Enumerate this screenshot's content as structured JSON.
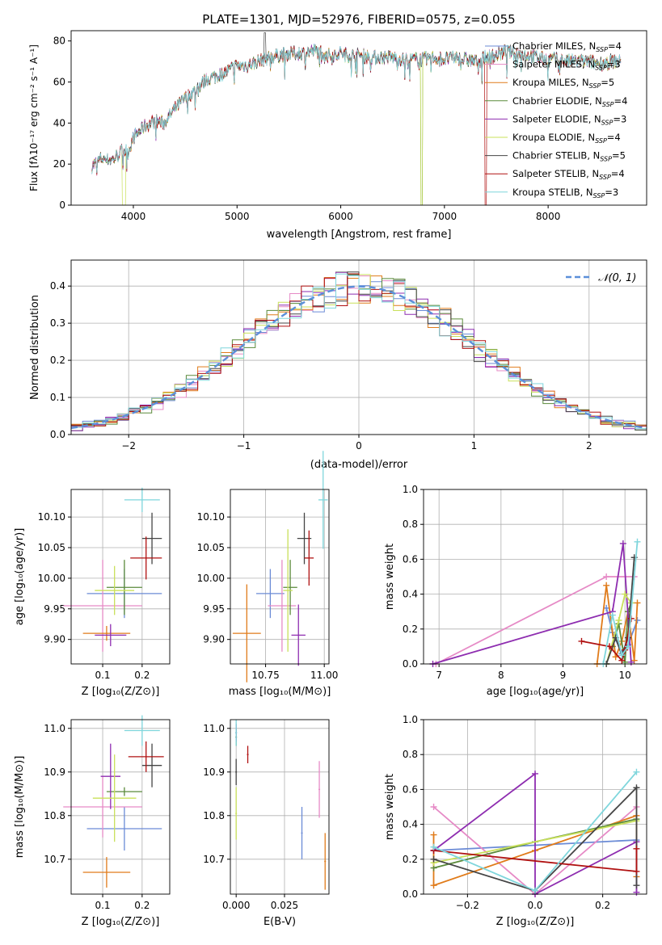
{
  "title": "PLATE=1301, MJD=52976, FIBERID=0575, z=0.055",
  "colors": {
    "Chabrier MILES": "#6b8bd6",
    "Salpeter MILES": "#e68ac6",
    "Kroupa MILES": "#e07b1a",
    "Chabrier ELODIE": "#5a8a3a",
    "Salpeter ELODIE": "#8e2db0",
    "Kroupa ELODIE": "#c9e05a",
    "Chabrier STELIB": "#454545",
    "Salpeter STELIB": "#b01010",
    "Kroupa STELIB": "#7fd6dc"
  },
  "chart_data": [
    {
      "id": "spectrum",
      "type": "line",
      "title": "PLATE=1301, MJD=52976, FIBERID=0575, z=0.055",
      "xlabel": "wavelength [Angstrom, rest frame]",
      "ylabel": "Flux [fλ10⁻¹⁷ erg cm⁻² s⁻¹ A⁻¹]",
      "xlim": [
        3400,
        8950
      ],
      "ylim": [
        0,
        85
      ],
      "xticks": [
        "4000",
        "5000",
        "6000",
        "7000",
        "8000"
      ],
      "yticks": [
        "0",
        "20",
        "40",
        "60",
        "80"
      ],
      "grid": false,
      "legend": "upper right",
      "legend_entries": [
        {
          "model": "Chabrier MILES",
          "nssp": "4"
        },
        {
          "model": "Salpeter MILES",
          "nssp": "3"
        },
        {
          "model": "Kroupa MILES",
          "nssp": "5"
        },
        {
          "model": "Chabrier ELODIE",
          "nssp": "4"
        },
        {
          "model": "Salpeter ELODIE",
          "nssp": "3"
        },
        {
          "model": "Kroupa ELODIE",
          "nssp": "4"
        },
        {
          "model": "Chabrier STELIB",
          "nssp": "5"
        },
        {
          "model": "Salpeter STELIB",
          "nssp": "4"
        },
        {
          "model": "Kroupa STELIB",
          "nssp": "3"
        }
      ],
      "continuum": [
        [
          3600,
          19
        ],
        [
          3700,
          23
        ],
        [
          3800,
          22
        ],
        [
          3900,
          27
        ],
        [
          3950,
          26
        ],
        [
          4000,
          33
        ],
        [
          4100,
          38
        ],
        [
          4200,
          41
        ],
        [
          4300,
          40
        ],
        [
          4400,
          47
        ],
        [
          4500,
          52
        ],
        [
          4600,
          56
        ],
        [
          4700,
          61
        ],
        [
          4800,
          63
        ],
        [
          4900,
          65
        ],
        [
          5000,
          68
        ],
        [
          5100,
          68
        ],
        [
          5200,
          70
        ],
        [
          5300,
          72
        ],
        [
          5400,
          73
        ],
        [
          5500,
          74
        ],
        [
          5600,
          74
        ],
        [
          5700,
          75
        ],
        [
          5800,
          75
        ],
        [
          5900,
          73
        ],
        [
          6000,
          74
        ],
        [
          6100,
          73
        ],
        [
          6200,
          73
        ],
        [
          6300,
          72
        ],
        [
          6400,
          72
        ],
        [
          6500,
          72
        ],
        [
          6600,
          71
        ],
        [
          6700,
          71
        ],
        [
          6800,
          71
        ],
        [
          6900,
          72
        ],
        [
          7000,
          71
        ],
        [
          7100,
          72
        ],
        [
          7200,
          71
        ],
        [
          7300,
          70
        ],
        [
          7400,
          72
        ],
        [
          7500,
          73
        ],
        [
          7600,
          75
        ],
        [
          7700,
          74
        ],
        [
          7800,
          73
        ],
        [
          7900,
          72
        ],
        [
          8000,
          71
        ],
        [
          8100,
          71
        ],
        [
          8200,
          70
        ],
        [
          8300,
          70
        ],
        [
          8400,
          70
        ],
        [
          8500,
          69
        ],
        [
          8600,
          70
        ],
        [
          8700,
          70
        ]
      ]
    },
    {
      "id": "residuals",
      "type": "histogram",
      "xlabel": "(data-model)/error",
      "ylabel": "Normed distribution",
      "xlim": [
        -2.5,
        2.5
      ],
      "ylim": [
        0,
        0.47
      ],
      "xticks": [
        "−2",
        "−1",
        "0",
        "1",
        "2"
      ],
      "yticks": [
        "0.0",
        "0.1",
        "0.2",
        "0.3",
        "0.4"
      ],
      "grid": true,
      "legend": "upper right",
      "legend_label": "𝒩(0, 1)",
      "bin_width": 0.1
    },
    {
      "id": "age-vs-Z",
      "type": "errorbar",
      "xlabel": "Z [log₁₀(Z/Z⊙)]",
      "ylabel": "age  [log₁₀(age/yr)]",
      "xlim": [
        0.02,
        0.27
      ],
      "ylim": [
        9.86,
        10.145
      ],
      "xticks": [
        "0.1",
        "0.2"
      ],
      "yticks": [
        "9.90",
        "9.95",
        "10.00",
        "10.05",
        "10.10"
      ],
      "grid": true,
      "points": [
        {
          "model": "Chabrier MILES",
          "x": 0.155,
          "xerr": 0.095,
          "y": 9.975,
          "yerr": 0.04
        },
        {
          "model": "Salpeter MILES",
          "x": 0.1,
          "xerr": 0.1,
          "y": 9.955,
          "yerr": 0.075
        },
        {
          "model": "Kroupa MILES",
          "x": 0.11,
          "xerr": 0.06,
          "y": 9.91,
          "yerr": 0.012
        },
        {
          "model": "Chabrier ELODIE",
          "x": 0.155,
          "xerr": 0.045,
          "y": 9.985,
          "yerr": 0.045
        },
        {
          "model": "Salpeter ELODIE",
          "x": 0.12,
          "xerr": 0.04,
          "y": 9.907,
          "yerr": 0.018
        },
        {
          "model": "Kroupa ELODIE",
          "x": 0.13,
          "xerr": 0.05,
          "y": 9.98,
          "yerr": 0.04
        },
        {
          "model": "Chabrier STELIB",
          "x": 0.225,
          "xerr": 0.025,
          "y": 10.065,
          "yerr": 0.042
        },
        {
          "model": "Salpeter STELIB",
          "x": 0.21,
          "xerr": 0.04,
          "y": 10.033,
          "yerr": 0.035
        },
        {
          "model": "Kroupa STELIB",
          "x": 0.2,
          "xerr": 0.045,
          "y": 10.128,
          "yerr": 0.02
        }
      ]
    },
    {
      "id": "age-vs-mass",
      "type": "errorbar",
      "xlabel": "mass [log₁₀(M/M⊙)]",
      "ylabel": "",
      "xlim": [
        10.6,
        11.02
      ],
      "ylim": [
        9.86,
        10.145
      ],
      "xticks": [
        "10.75",
        "11.00"
      ],
      "yticks": [
        "9.90",
        "9.95",
        "10.00",
        "10.05",
        "10.10"
      ],
      "grid": true,
      "points": [
        {
          "model": "Chabrier MILES",
          "x": 10.77,
          "xerr": 0.06,
          "y": 9.975,
          "yerr": 0.04
        },
        {
          "model": "Salpeter MILES",
          "x": 10.82,
          "xerr": 0.06,
          "y": 9.955,
          "yerr": 0.075
        },
        {
          "model": "Kroupa MILES",
          "x": 10.67,
          "xerr": 0.06,
          "y": 9.91,
          "yerr": 0.08
        },
        {
          "model": "Chabrier ELODIE",
          "x": 10.855,
          "xerr": 0.03,
          "y": 9.985,
          "yerr": 0.045
        },
        {
          "model": "Salpeter ELODIE",
          "x": 10.89,
          "xerr": 0.03,
          "y": 9.907,
          "yerr": 0.05
        },
        {
          "model": "Kroupa ELODIE",
          "x": 10.845,
          "xerr": 0.02,
          "y": 9.98,
          "yerr": 0.1
        },
        {
          "model": "Chabrier STELIB",
          "x": 10.915,
          "xerr": 0.03,
          "y": 10.065,
          "yerr": 0.042
        },
        {
          "model": "Salpeter STELIB",
          "x": 10.935,
          "xerr": 0.02,
          "y": 10.033,
          "yerr": 0.045
        },
        {
          "model": "Kroupa STELIB",
          "x": 10.995,
          "xerr": 0.02,
          "y": 10.128,
          "yerr": 0.08
        }
      ]
    },
    {
      "id": "weight-vs-age",
      "type": "line",
      "xlabel": "age  [log₁₀(age/yr)]",
      "ylabel": "mass weight",
      "xlim": [
        6.75,
        10.35
      ],
      "ylim": [
        0,
        1
      ],
      "xticks": [
        "7",
        "8",
        "9",
        "10"
      ],
      "yticks": [
        "0.0",
        "0.2",
        "0.4",
        "0.6",
        "0.8",
        "1.0"
      ],
      "grid": true,
      "series": [
        {
          "model": "Chabrier MILES",
          "x": [
            9.7,
            9.8,
            9.95,
            10.05,
            10.2
          ],
          "y": [
            0.32,
            0.18,
            0.06,
            0.11,
            0.25
          ]
        },
        {
          "model": "Salpeter MILES",
          "x": [
            6.95,
            9.7,
            10.15
          ],
          "y": [
            0.0,
            0.5,
            0.5
          ]
        },
        {
          "model": "Kroupa MILES",
          "x": [
            9.55,
            9.7,
            9.85,
            9.95,
            10.05,
            10.15,
            10.2
          ],
          "y": [
            0.0,
            0.45,
            0.04,
            0.13,
            0.3,
            0.02,
            0.35
          ]
        },
        {
          "model": "Chabrier ELODIE",
          "x": [
            9.8,
            9.9,
            10.0,
            10.05,
            10.1
          ],
          "y": [
            0.1,
            0.23,
            0.01,
            0.3,
            0.35
          ]
        },
        {
          "model": "Salpeter ELODIE",
          "x": [
            6.9,
            9.8,
            9.97,
            10.1
          ],
          "y": [
            0.0,
            0.3,
            0.69,
            0.01
          ]
        },
        {
          "model": "Kroupa ELODIE",
          "x": [
            9.7,
            9.9,
            10.0,
            10.1
          ],
          "y": [
            0.0,
            0.25,
            0.4,
            0.35
          ]
        },
        {
          "model": "Chabrier STELIB",
          "x": [
            9.7,
            9.85,
            9.95,
            10.05,
            10.15
          ],
          "y": [
            0.0,
            0.15,
            0.05,
            0.15,
            0.61
          ]
        },
        {
          "model": "Salpeter STELIB",
          "x": [
            9.3,
            9.75,
            9.95,
            10.0,
            10.1
          ],
          "y": [
            0.13,
            0.1,
            0.02,
            0.08,
            0.26
          ]
        },
        {
          "model": "Kroupa STELIB",
          "x": [
            9.65,
            9.8,
            9.95,
            10.05,
            10.2
          ],
          "y": [
            0.0,
            0.28,
            0.05,
            0.1,
            0.7
          ]
        }
      ]
    },
    {
      "id": "mass-vs-Z",
      "type": "errorbar",
      "xlabel": "Z [log₁₀(Z/Z⊙)]",
      "ylabel": "mass [log₁₀(M/M⊙)]",
      "xlim": [
        0.02,
        0.27
      ],
      "ylim": [
        10.62,
        11.02
      ],
      "xticks": [
        "0.1",
        "0.2"
      ],
      "yticks": [
        "10.7",
        "10.8",
        "10.9",
        "11.0"
      ],
      "grid": true,
      "points": [
        {
          "model": "Chabrier MILES",
          "x": 0.155,
          "xerr": 0.095,
          "y": 10.77,
          "yerr": 0.05
        },
        {
          "model": "Salpeter MILES",
          "x": 0.1,
          "xerr": 0.1,
          "y": 10.82,
          "yerr": 0.07
        },
        {
          "model": "Kroupa MILES",
          "x": 0.11,
          "xerr": 0.06,
          "y": 10.67,
          "yerr": 0.035
        },
        {
          "model": "Chabrier ELODIE",
          "x": 0.155,
          "xerr": 0.045,
          "y": 10.855,
          "yerr": 0.01
        },
        {
          "model": "Salpeter ELODIE",
          "x": 0.12,
          "xerr": 0.025,
          "y": 10.89,
          "yerr": 0.075
        },
        {
          "model": "Kroupa ELODIE",
          "x": 0.13,
          "xerr": 0.055,
          "y": 10.84,
          "yerr": 0.1
        },
        {
          "model": "Chabrier STELIB",
          "x": 0.225,
          "xerr": 0.025,
          "y": 10.915,
          "yerr": 0.05
        },
        {
          "model": "Salpeter STELIB",
          "x": 0.21,
          "xerr": 0.045,
          "y": 10.935,
          "yerr": 0.035
        },
        {
          "model": "Kroupa STELIB",
          "x": 0.2,
          "xerr": 0.045,
          "y": 10.995,
          "yerr": 0.035
        }
      ]
    },
    {
      "id": "mass-vs-ebv",
      "type": "errorbar",
      "xlabel": "E(B-V)",
      "ylabel": "",
      "xlim": [
        -0.003,
        0.048
      ],
      "ylim": [
        10.62,
        11.02
      ],
      "xticks": [
        "0.000",
        "0.025"
      ],
      "yticks": [
        "10.7",
        "10.8",
        "10.9",
        "11.0"
      ],
      "grid": true,
      "points": [
        {
          "model": "Chabrier MILES",
          "x": 0.034,
          "y": 10.76,
          "yerr": 0.06
        },
        {
          "model": "Salpeter MILES",
          "x": 0.043,
          "y": 10.86,
          "yerr": 0.065
        },
        {
          "model": "Kroupa MILES",
          "x": 0.046,
          "y": 10.695,
          "yerr": 0.065
        },
        {
          "model": "Chabrier ELODIE",
          "x": 0.0,
          "y": 10.98,
          "yerr": 0.02
        },
        {
          "model": "Salpeter ELODIE",
          "x": 0.0,
          "y": 10.99,
          "yerr": 0.02
        },
        {
          "model": "Kroupa ELODIE",
          "x": 0.0,
          "y": 10.805,
          "yerr": 0.06
        },
        {
          "model": "Chabrier STELIB",
          "x": 0.0,
          "y": 10.9,
          "yerr": 0.03
        },
        {
          "model": "Salpeter STELIB",
          "x": 0.006,
          "y": 10.94,
          "yerr": 0.02
        },
        {
          "model": "Kroupa STELIB",
          "x": 0.0,
          "y": 10.99,
          "yerr": 0.03
        }
      ]
    },
    {
      "id": "weight-vs-Z",
      "type": "line",
      "xlabel": "Z [log₁₀(Z/Z⊙)]",
      "ylabel": "mass weight",
      "xlim": [
        -0.33,
        0.33
      ],
      "ylim": [
        0,
        1
      ],
      "xticks": [
        "−0.2",
        "0.0",
        "0.2"
      ],
      "yticks": [
        "0.0",
        "0.2",
        "0.4",
        "0.6",
        "0.8",
        "1.0"
      ],
      "grid": true,
      "series": [
        {
          "model": "Chabrier MILES",
          "x": [
            -0.3,
            0.3
          ],
          "y": [
            0.25,
            0.31
          ]
        },
        {
          "model": "Salpeter MILES",
          "x": [
            -0.3,
            0.0,
            0.3
          ],
          "y": [
            0.5,
            0.0,
            0.5
          ]
        },
        {
          "model": "Kroupa MILES",
          "x": [
            -0.3,
            -0.3,
            0.0,
            0.3,
            0.3
          ],
          "y": [
            0.34,
            0.05,
            0.25,
            0.45,
            0.1
          ]
        },
        {
          "model": "Chabrier ELODIE",
          "x": [
            -0.3,
            0.0,
            0.3
          ],
          "y": [
            0.15,
            0.3,
            0.43
          ]
        },
        {
          "model": "Salpeter ELODIE",
          "x": [
            -0.3,
            0.0,
            0.0,
            0.3,
            0.3
          ],
          "y": [
            0.25,
            0.69,
            0.0,
            0.3,
            0.01
          ]
        },
        {
          "model": "Kroupa ELODIE",
          "x": [
            -0.3,
            0.3
          ],
          "y": [
            0.18,
            0.42
          ]
        },
        {
          "model": "Chabrier STELIB",
          "x": [
            -0.3,
            0.0,
            0.3,
            0.3
          ],
          "y": [
            0.2,
            0.02,
            0.61,
            0.05
          ]
        },
        {
          "model": "Salpeter STELIB",
          "x": [
            -0.3,
            0.3,
            0.3
          ],
          "y": [
            0.25,
            0.13,
            0.26
          ]
        },
        {
          "model": "Kroupa STELIB",
          "x": [
            -0.3,
            0.0,
            0.3
          ],
          "y": [
            0.27,
            0.02,
            0.7
          ]
        }
      ]
    }
  ]
}
